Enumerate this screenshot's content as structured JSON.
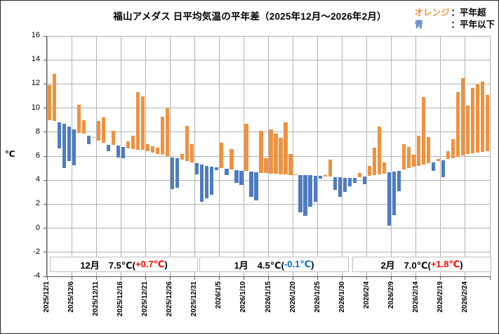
{
  "title": "福山アメダス 日平均気温の平年差（2025年12月～2026年2月）",
  "legend": {
    "orange_label": "オレンジ",
    "orange_desc": "：平年超",
    "blue_label": "青",
    "blue_desc": "：平年以下"
  },
  "y_axis": {
    "unit": "℃",
    "min": -4,
    "max": 16,
    "tick_step": 2,
    "ticks": [
      16,
      14,
      12,
      10,
      8,
      6,
      4,
      2,
      0,
      -2,
      -4
    ]
  },
  "x_axis": {
    "tick_labels": [
      "2025/12/1",
      "2025/12/6",
      "2025/12/11",
      "2025/12/16",
      "2025/12/21",
      "2025/12/26",
      "2025/12/31",
      "2026/1/5",
      "2026/1/10",
      "2026/1/15",
      "2026/1/20",
      "2026/1/25",
      "2026/1/30",
      "2026/2/4",
      "2026/2/9",
      "2026/2/14",
      "2026/2/19",
      "2026/2/24"
    ]
  },
  "monthly_summary": [
    {
      "month": "12月",
      "mean": "7.5℃",
      "anomaly": "+0.7℃",
      "anomaly_color": "#FF0000"
    },
    {
      "month": "1月",
      "mean": "4.5℃",
      "anomaly": "-0.1℃",
      "anomaly_color": "#0070C0"
    },
    {
      "month": "2月",
      "mean": "7.0℃",
      "anomaly": "+1.8℃",
      "anomaly_color": "#FF0000"
    }
  ],
  "colors": {
    "above_normal": "#F0913F",
    "below_normal": "#4E7CC0",
    "gridline": "#B3B3B3",
    "axis": "#595959",
    "box_border": "#BFBFBF",
    "anomaly_positive": "#FF0000",
    "anomaly_negative": "#0070C0"
  },
  "chart_data": {
    "type": "bar",
    "title": "福山アメダス 日平均気温の平年差（2025年12月～2026年2月）",
    "ylabel": "℃",
    "ylim": [
      -4,
      16
    ],
    "grid": true,
    "description": "Floating bars from climatological normal to daily mean temperature; orange = above normal (平年超), blue = below normal (平年以下)",
    "dates": [
      "2025/12/1",
      "2025/12/2",
      "2025/12/3",
      "2025/12/4",
      "2025/12/5",
      "2025/12/6",
      "2025/12/7",
      "2025/12/8",
      "2025/12/9",
      "2025/12/10",
      "2025/12/11",
      "2025/12/12",
      "2025/12/13",
      "2025/12/14",
      "2025/12/15",
      "2025/12/16",
      "2025/12/17",
      "2025/12/18",
      "2025/12/19",
      "2025/12/20",
      "2025/12/21",
      "2025/12/22",
      "2025/12/23",
      "2025/12/24",
      "2025/12/25",
      "2025/12/26",
      "2025/12/27",
      "2025/12/28",
      "2025/12/29",
      "2025/12/30",
      "2025/12/31",
      "2026/1/1",
      "2026/1/2",
      "2026/1/3",
      "2026/1/4",
      "2026/1/5",
      "2026/1/6",
      "2026/1/7",
      "2026/1/8",
      "2026/1/9",
      "2026/1/10",
      "2026/1/11",
      "2026/1/12",
      "2026/1/13",
      "2026/1/14",
      "2026/1/15",
      "2026/1/16",
      "2026/1/17",
      "2026/1/18",
      "2026/1/19",
      "2026/1/20",
      "2026/1/21",
      "2026/1/22",
      "2026/1/23",
      "2026/1/24",
      "2026/1/25",
      "2026/1/26",
      "2026/1/27",
      "2026/1/28",
      "2026/1/29",
      "2026/1/30",
      "2026/1/31",
      "2026/2/1",
      "2026/2/2",
      "2026/2/3",
      "2026/2/4",
      "2026/2/5",
      "2026/2/6",
      "2026/2/7",
      "2026/2/8",
      "2026/2/9",
      "2026/2/10",
      "2026/2/11",
      "2026/2/12",
      "2026/2/13",
      "2026/2/14",
      "2026/2/15",
      "2026/2/16",
      "2026/2/17",
      "2026/2/18",
      "2026/2/19",
      "2026/2/20",
      "2026/2/21",
      "2026/2/22",
      "2026/2/23",
      "2026/2/24",
      "2026/2/25",
      "2026/2/26",
      "2026/2/27",
      "2026/2/28"
    ],
    "normal": [
      9.0,
      8.95,
      8.8,
      8.7,
      8.45,
      8.2,
      7.95,
      7.85,
      7.7,
      7.5,
      7.3,
      7.1,
      6.95,
      6.95,
      6.85,
      6.75,
      6.65,
      6.6,
      6.55,
      6.5,
      6.4,
      6.3,
      6.2,
      6.1,
      6.0,
      5.9,
      5.8,
      5.7,
      5.6,
      5.5,
      5.4,
      5.3,
      5.2,
      5.1,
      5.05,
      5.0,
      4.95,
      4.9,
      4.85,
      4.8,
      4.75,
      4.7,
      4.65,
      4.6,
      4.6,
      4.55,
      4.55,
      4.5,
      4.5,
      4.45,
      4.45,
      4.4,
      4.4,
      4.4,
      4.35,
      4.35,
      4.3,
      4.3,
      4.25,
      4.25,
      4.2,
      4.2,
      4.2,
      4.25,
      4.3,
      4.35,
      4.4,
      4.5,
      4.55,
      4.65,
      4.7,
      4.8,
      4.9,
      5.0,
      5.1,
      5.2,
      5.3,
      5.4,
      5.5,
      5.6,
      5.65,
      5.75,
      5.85,
      5.95,
      6.05,
      6.15,
      6.25,
      6.3,
      6.35,
      6.4
    ],
    "actual": [
      11.9,
      12.85,
      6.65,
      5.0,
      5.6,
      5.25,
      10.25,
      9.0,
      7.0,
      7.6,
      8.9,
      9.2,
      6.4,
      8.1,
      5.9,
      5.8,
      7.2,
      7.7,
      11.3,
      11.0,
      7.0,
      6.8,
      6.7,
      9.3,
      10.0,
      3.25,
      3.35,
      6.2,
      8.5,
      7.0,
      4.5,
      2.2,
      2.5,
      2.8,
      4.85,
      7.1,
      4.4,
      6.6,
      3.8,
      3.6,
      8.7,
      2.6,
      2.3,
      8.1,
      5.8,
      8.2,
      7.9,
      7.5,
      8.8,
      6.2,
      4.5,
      1.3,
      1.0,
      1.8,
      2.2,
      4.1,
      4.45,
      5.7,
      3.2,
      2.6,
      3.0,
      3.5,
      3.8,
      4.6,
      3.65,
      5.2,
      6.7,
      8.45,
      5.5,
      0.2,
      1.1,
      3.1,
      7.0,
      6.75,
      6.1,
      7.7,
      10.9,
      7.6,
      4.8,
      5.75,
      4.25,
      6.4,
      7.4,
      11.3,
      12.5,
      10.2,
      11.7,
      12.0,
      12.2,
      11.1
    ]
  }
}
